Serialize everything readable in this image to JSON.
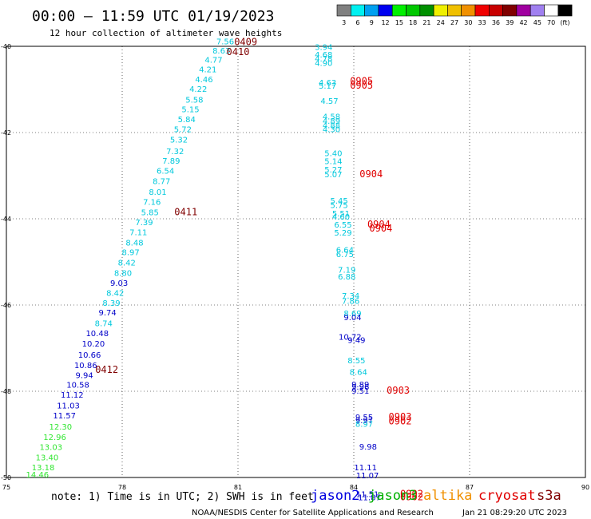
{
  "header": {
    "title": "00:00 – 11:59 UTC 01/19/2023",
    "subtitle": "12 hour collection of altimeter wave heights"
  },
  "colorbar": {
    "colors": [
      "#808080",
      "#00f0f0",
      "#00a0f0",
      "#0000f0",
      "#00f000",
      "#00c800",
      "#009000",
      "#f0f000",
      "#f0c000",
      "#f09000",
      "#f00000",
      "#c80000",
      "#800000",
      "#a000a0",
      "#a080f0",
      "#ffffff",
      "#000000"
    ],
    "labels": [
      "3",
      "6",
      "9",
      "12",
      "15",
      "18",
      "21",
      "24",
      "27",
      "30",
      "33",
      "36",
      "39",
      "42",
      "45",
      "70",
      "(ft)"
    ]
  },
  "legend": {
    "note": "note: 1) Time is in UTC; 2) SWH is in feet",
    "items": [
      {
        "label": "jason2",
        "color": "#0000e0"
      },
      {
        "label": "jason3",
        "color": "#00b000"
      },
      {
        "label": "altika",
        "color": "#f09000"
      },
      {
        "label": "cryosat",
        "color": "#e00000"
      },
      {
        "label": "s3a",
        "color": "#800000"
      }
    ]
  },
  "footer": {
    "credit": "NOAA/NESDIS Center for Satellite Applications and Research",
    "timestamp": "Jan 21 08:29:20 UTC 2023"
  },
  "chart_data": {
    "type": "scatter",
    "xlim": [
      75,
      90
    ],
    "ylim": [
      -50,
      -40
    ],
    "x_ticks": [
      "75",
      "78",
      "81",
      "84",
      "87",
      "90"
    ],
    "y_ticks": [
      "-40",
      "-42",
      "-44",
      "-46",
      "-48",
      "-50"
    ],
    "grid": true,
    "track_a": [
      {
        "x": 80.9,
        "y": -39.95,
        "v": "7.56",
        "c": "#00c8dc"
      },
      {
        "x": 80.8,
        "y": -40.17,
        "v": "8.63",
        "c": "#00c8dc"
      },
      {
        "x": 80.6,
        "y": -40.38,
        "v": "4.77",
        "c": "#00c8dc"
      },
      {
        "x": 80.45,
        "y": -40.6,
        "v": "4.21",
        "c": "#00c8dc"
      },
      {
        "x": 80.35,
        "y": -40.83,
        "v": "4.46",
        "c": "#00c8dc"
      },
      {
        "x": 80.2,
        "y": -41.06,
        "v": "4.22",
        "c": "#00c8dc"
      },
      {
        "x": 80.1,
        "y": -41.31,
        "v": "5.58",
        "c": "#00c8dc"
      },
      {
        "x": 80.0,
        "y": -41.53,
        "v": "5.15",
        "c": "#00c8dc"
      },
      {
        "x": 79.9,
        "y": -41.76,
        "v": "5.84",
        "c": "#00c8dc"
      },
      {
        "x": 79.8,
        "y": -41.99,
        "v": "5.72",
        "c": "#00c8dc"
      },
      {
        "x": 79.7,
        "y": -42.23,
        "v": "5.32",
        "c": "#00c8dc"
      },
      {
        "x": 79.6,
        "y": -42.5,
        "v": "7.32",
        "c": "#00c8dc"
      },
      {
        "x": 79.5,
        "y": -42.72,
        "v": "7.89",
        "c": "#00c8dc"
      },
      {
        "x": 79.35,
        "y": -42.95,
        "v": "6.54",
        "c": "#00c8dc"
      },
      {
        "x": 79.25,
        "y": -43.19,
        "v": "8.77",
        "c": "#00c8dc"
      },
      {
        "x": 79.15,
        "y": -43.44,
        "v": "8.01",
        "c": "#00c8dc"
      },
      {
        "x": 79.0,
        "y": -43.68,
        "v": "7.16",
        "c": "#00c8dc"
      },
      {
        "x": 78.95,
        "y": -43.92,
        "v": "5.85",
        "c": "#00c8dc"
      },
      {
        "x": 78.8,
        "y": -44.15,
        "v": "7.39",
        "c": "#00c8dc"
      },
      {
        "x": 78.65,
        "y": -44.38,
        "v": "7.11",
        "c": "#00c8dc"
      },
      {
        "x": 78.55,
        "y": -44.62,
        "v": "8.48",
        "c": "#00c8dc"
      },
      {
        "x": 78.45,
        "y": -44.84,
        "v": "8.97",
        "c": "#00c8dc"
      },
      {
        "x": 78.35,
        "y": -45.08,
        "v": "8.42",
        "c": "#00c8dc"
      },
      {
        "x": 78.25,
        "y": -45.32,
        "v": "8.80",
        "c": "#00c8dc"
      },
      {
        "x": 78.15,
        "y": -45.56,
        "v": "9.03",
        "c": "#0000c8"
      },
      {
        "x": 78.05,
        "y": -45.79,
        "v": "8.42",
        "c": "#00c8dc"
      },
      {
        "x": 77.95,
        "y": -46.02,
        "v": "8.39",
        "c": "#00c8dc"
      },
      {
        "x": 77.85,
        "y": -46.24,
        "v": "9.74",
        "c": "#0000c8"
      },
      {
        "x": 77.75,
        "y": -46.49,
        "v": "8.74",
        "c": "#00c8dc"
      },
      {
        "x": 77.65,
        "y": -46.72,
        "v": "10.48",
        "c": "#0000c8"
      },
      {
        "x": 77.55,
        "y": -46.96,
        "v": "10.20",
        "c": "#0000c8"
      },
      {
        "x": 77.45,
        "y": -47.22,
        "v": "10.66",
        "c": "#0000c8"
      },
      {
        "x": 77.35,
        "y": -47.46,
        "v": "10.86",
        "c": "#0000c8"
      },
      {
        "x": 77.25,
        "y": -47.69,
        "v": "9.94",
        "c": "#0000c8"
      },
      {
        "x": 77.15,
        "y": -47.92,
        "v": "10.58",
        "c": "#0000c8"
      },
      {
        "x": 77.0,
        "y": -48.15,
        "v": "11.12",
        "c": "#0000c8"
      },
      {
        "x": 76.9,
        "y": -48.4,
        "v": "11.03",
        "c": "#0000c8"
      },
      {
        "x": 76.8,
        "y": -48.63,
        "v": "11.57",
        "c": "#0000c8"
      },
      {
        "x": 76.7,
        "y": -48.89,
        "v": "12.30",
        "c": "#32e632"
      },
      {
        "x": 76.55,
        "y": -49.13,
        "v": "12.96",
        "c": "#32e632"
      },
      {
        "x": 76.45,
        "y": -49.36,
        "v": "13.03",
        "c": "#32e632"
      },
      {
        "x": 76.35,
        "y": -49.6,
        "v": "13.40",
        "c": "#32e632"
      },
      {
        "x": 76.25,
        "y": -49.83,
        "v": "13.18",
        "c": "#32e632"
      },
      {
        "x": 76.1,
        "y": -50.0,
        "v": "14.46",
        "c": "#32e632"
      }
    ],
    "track_b": [
      {
        "x": 83.45,
        "y": -40.08,
        "v": "3.94",
        "c": "#00c8dc"
      },
      {
        "x": 83.45,
        "y": -40.26,
        "v": "4.68",
        "c": "#00c8dc"
      },
      {
        "x": 83.45,
        "y": -40.35,
        "v": "4.78",
        "c": "#00c8dc"
      },
      {
        "x": 83.45,
        "y": -40.45,
        "v": "4.90",
        "c": "#00c8dc"
      },
      {
        "x": 83.55,
        "y": -40.91,
        "v": "4.63",
        "c": "#00c8dc"
      },
      {
        "x": 83.55,
        "y": -40.98,
        "v": "5.17",
        "c": "#00c8dc"
      },
      {
        "x": 83.6,
        "y": -41.33,
        "v": "4.57",
        "c": "#00c8dc"
      },
      {
        "x": 83.65,
        "y": -41.69,
        "v": "4.58",
        "c": "#00c8dc"
      },
      {
        "x": 83.65,
        "y": -41.8,
        "v": "4.89",
        "c": "#00c8dc"
      },
      {
        "x": 83.65,
        "y": -41.9,
        "v": "4.88",
        "c": "#00c8dc"
      },
      {
        "x": 83.65,
        "y": -41.99,
        "v": "4.30",
        "c": "#00c8dc"
      },
      {
        "x": 83.7,
        "y": -42.55,
        "v": "5.40",
        "c": "#00c8dc"
      },
      {
        "x": 83.7,
        "y": -42.73,
        "v": "5.14",
        "c": "#00c8dc"
      },
      {
        "x": 83.7,
        "y": -42.93,
        "v": "5.27",
        "c": "#00c8dc"
      },
      {
        "x": 83.7,
        "y": -43.04,
        "v": "5.07",
        "c": "#00c8dc"
      },
      {
        "x": 83.85,
        "y": -43.65,
        "v": "5.45",
        "c": "#00c8dc"
      },
      {
        "x": 83.85,
        "y": -43.75,
        "v": "5.75",
        "c": "#00c8dc"
      },
      {
        "x": 83.9,
        "y": -43.94,
        "v": "5.51",
        "c": "#00c8dc"
      },
      {
        "x": 83.9,
        "y": -44.02,
        "v": "4.60",
        "c": "#00c8dc"
      },
      {
        "x": 83.95,
        "y": -44.2,
        "v": "6.55",
        "c": "#00c8dc"
      },
      {
        "x": 83.95,
        "y": -44.39,
        "v": "5.29",
        "c": "#00c8dc"
      },
      {
        "x": 84.0,
        "y": -44.79,
        "v": "6.64",
        "c": "#00c8dc"
      },
      {
        "x": 84.0,
        "y": -44.89,
        "v": "6.75",
        "c": "#00c8dc"
      },
      {
        "x": 84.05,
        "y": -45.25,
        "v": "7.19",
        "c": "#00c8dc"
      },
      {
        "x": 84.05,
        "y": -45.41,
        "v": "6.88",
        "c": "#00c8dc"
      },
      {
        "x": 84.15,
        "y": -45.85,
        "v": "7.34",
        "c": "#00c8dc"
      },
      {
        "x": 84.15,
        "y": -45.97,
        "v": "7.86",
        "c": "#00c8dc"
      },
      {
        "x": 84.2,
        "y": -46.26,
        "v": "8.69",
        "c": "#00c8dc"
      },
      {
        "x": 84.2,
        "y": -46.35,
        "v": "9.04",
        "c": "#0000c8"
      },
      {
        "x": 84.2,
        "y": -46.81,
        "v": "10.72",
        "c": "#0000c8"
      },
      {
        "x": 84.3,
        "y": -46.88,
        "v": "9.49",
        "c": "#0000c8"
      },
      {
        "x": 84.3,
        "y": -47.35,
        "v": "8.55",
        "c": "#00c8dc"
      },
      {
        "x": 84.35,
        "y": -47.62,
        "v": "8.64",
        "c": "#00c8dc"
      },
      {
        "x": 84.4,
        "y": -47.91,
        "v": "9.89",
        "c": "#0000c8"
      },
      {
        "x": 84.4,
        "y": -47.96,
        "v": "9.96",
        "c": "#0000c8"
      },
      {
        "x": 84.4,
        "y": -48.06,
        "v": "9.51",
        "c": "#0000c8"
      },
      {
        "x": 84.5,
        "y": -48.67,
        "v": "9.55",
        "c": "#0000c8"
      },
      {
        "x": 84.5,
        "y": -48.74,
        "v": "9.97",
        "c": "#0000c8"
      },
      {
        "x": 84.5,
        "y": -48.82,
        "v": "8.97",
        "c": "#00c8dc"
      },
      {
        "x": 84.6,
        "y": -49.35,
        "v": "9.98",
        "c": "#0000c8"
      },
      {
        "x": 84.6,
        "y": -49.83,
        "v": "11.11",
        "c": "#0000c8"
      },
      {
        "x": 84.65,
        "y": -50.02,
        "v": "11.07",
        "c": "#0000c8"
      },
      {
        "x": 84.65,
        "y": -50.45,
        "v": "11.51",
        "c": "#0000c8"
      },
      {
        "x": 84.7,
        "y": -50.53,
        "v": "11.87",
        "c": "#0000c8"
      }
    ],
    "times": [
      {
        "x": 81.2,
        "y": -39.97,
        "v": "0409",
        "c": "#800000"
      },
      {
        "x": 81.0,
        "y": -40.2,
        "v": "0410",
        "c": "#800000"
      },
      {
        "x": 79.65,
        "y": -43.92,
        "v": "0411",
        "c": "#800000"
      },
      {
        "x": 77.6,
        "y": -47.57,
        "v": "0412",
        "c": "#800000"
      },
      {
        "x": 84.2,
        "y": -40.88,
        "v": "0905",
        "c": "#e00000"
      },
      {
        "x": 84.2,
        "y": -40.98,
        "v": "0905",
        "c": "#e00000"
      },
      {
        "x": 84.45,
        "y": -43.04,
        "v": "0904",
        "c": "#e00000"
      },
      {
        "x": 84.65,
        "y": -44.2,
        "v": "0904",
        "c": "#e00000"
      },
      {
        "x": 84.7,
        "y": -44.3,
        "v": "0904",
        "c": "#e00000"
      },
      {
        "x": 85.15,
        "y": -48.06,
        "v": "0903",
        "c": "#e00000"
      },
      {
        "x": 85.2,
        "y": -48.67,
        "v": "0903",
        "c": "#e00000"
      },
      {
        "x": 85.2,
        "y": -48.77,
        "v": "0902",
        "c": "#e00000"
      },
      {
        "x": 85.5,
        "y": -50.45,
        "v": "0902",
        "c": "#e00000"
      },
      {
        "x": 85.5,
        "y": -50.53,
        "v": "0902",
        "c": "#e00000"
      }
    ]
  }
}
